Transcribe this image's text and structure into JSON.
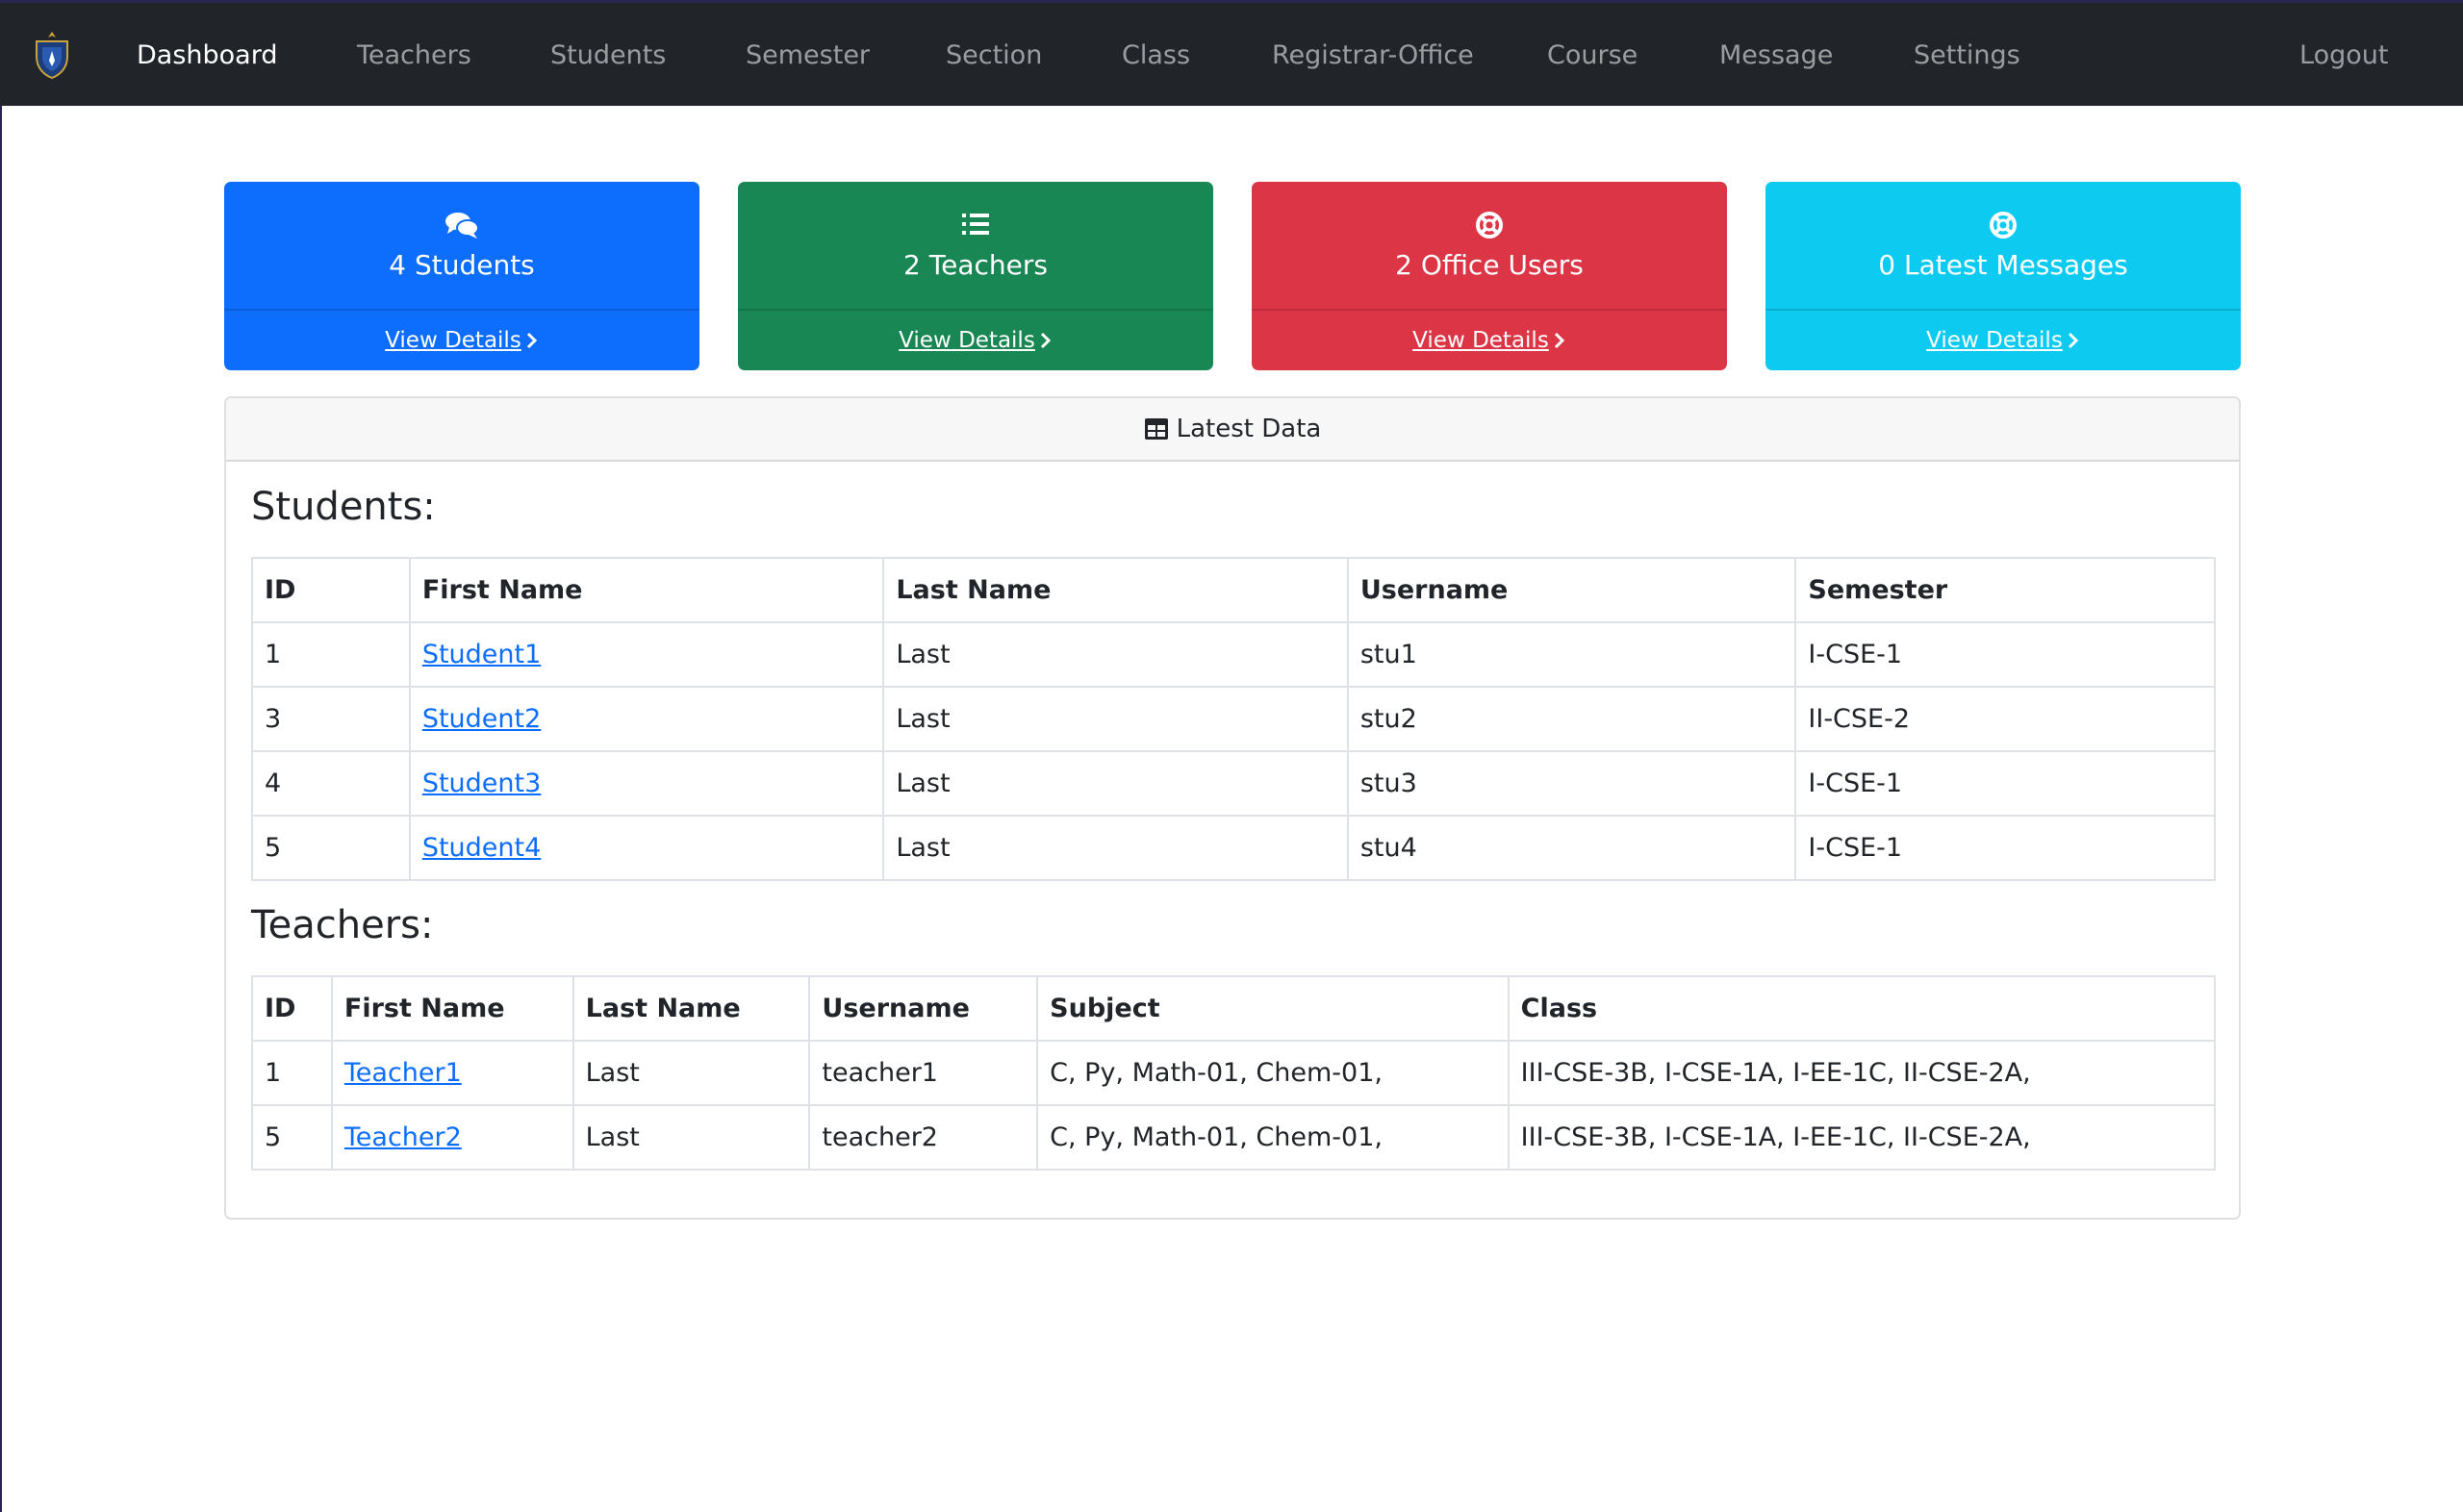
{
  "navbar": {
    "items": [
      {
        "label": "Dashboard",
        "active": true
      },
      {
        "label": "Teachers"
      },
      {
        "label": "Students"
      },
      {
        "label": "Semester"
      },
      {
        "label": "Section"
      },
      {
        "label": "Class"
      },
      {
        "label": "Registrar-Office"
      },
      {
        "label": "Course"
      },
      {
        "label": "Message"
      },
      {
        "label": "Settings"
      }
    ],
    "logout": "Logout"
  },
  "cards": [
    {
      "count": "4 Students",
      "link": "View Details",
      "icon": "comments-icon",
      "color": "#0d6efd"
    },
    {
      "count": "2 Teachers",
      "link": "View Details",
      "icon": "list-icon",
      "color": "#198754"
    },
    {
      "count": "2 Office Users",
      "link": "View Details",
      "icon": "life-ring-icon",
      "color": "#dc3545"
    },
    {
      "count": "0 Latest Messages",
      "link": "View Details",
      "icon": "life-ring-icon",
      "color": "#0dcaf0"
    }
  ],
  "panel": {
    "header": "Latest Data",
    "header_icon": "table-icon"
  },
  "students": {
    "title": "Students:",
    "columns": [
      "ID",
      "First Name",
      "Last Name",
      "Username",
      "Semester"
    ],
    "rows": [
      [
        "1",
        "Student1",
        "Last",
        "stu1",
        "I-CSE-1"
      ],
      [
        "3",
        "Student2",
        "Last",
        "stu2",
        "II-CSE-2"
      ],
      [
        "4",
        "Student3",
        "Last",
        "stu3",
        "I-CSE-1"
      ],
      [
        "5",
        "Student4",
        "Last",
        "stu4",
        "I-CSE-1"
      ]
    ]
  },
  "teachers": {
    "title": "Teachers:",
    "columns": [
      "ID",
      "First Name",
      "Last Name",
      "Username",
      "Subject",
      "Class"
    ],
    "rows": [
      [
        "1",
        "Teacher1",
        "Last",
        "teacher1",
        "C, Py, Math-01, Chem-01,",
        "III-CSE-3B, I-CSE-1A, I-EE-1C, II-CSE-2A,"
      ],
      [
        "5",
        "Teacher2",
        "Last",
        "teacher2",
        "C, Py, Math-01, Chem-01,",
        "III-CSE-3B, I-CSE-1A, I-EE-1C, II-CSE-2A,"
      ]
    ]
  }
}
